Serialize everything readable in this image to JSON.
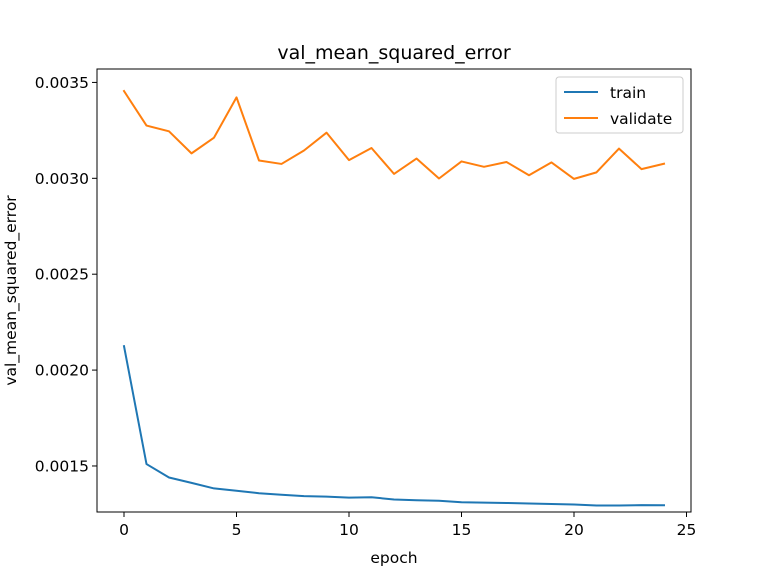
{
  "chart_data": {
    "type": "line",
    "title": "val_mean_squared_error",
    "xlabel": "epoch",
    "ylabel": "val_mean_squared_error",
    "xlim": [
      -1.2,
      25.2
    ],
    "ylim": [
      0.00126,
      0.00357
    ],
    "xticks": [
      0,
      5,
      10,
      15,
      20,
      25
    ],
    "xtick_labels": [
      "0",
      "5",
      "10",
      "15",
      "20",
      "25"
    ],
    "yticks": [
      0.0015,
      0.002,
      0.0025,
      0.003,
      0.0035
    ],
    "ytick_labels": [
      "0.0015",
      "0.0020",
      "0.0025",
      "0.0030",
      "0.0035"
    ],
    "grid": false,
    "legend_position": "top-right",
    "x": [
      0,
      1,
      2,
      3,
      4,
      5,
      6,
      7,
      8,
      9,
      10,
      11,
      12,
      13,
      14,
      15,
      16,
      17,
      18,
      19,
      20,
      21,
      22,
      23,
      24
    ],
    "series": [
      {
        "name": "train",
        "color": "#1f77b4",
        "values": [
          0.002125,
          0.00151,
          0.00144,
          0.001412,
          0.001383,
          0.001371,
          0.001358,
          0.00135,
          0.001343,
          0.00134,
          0.001335,
          0.001337,
          0.001325,
          0.001321,
          0.001319,
          0.001311,
          0.001309,
          0.001307,
          0.001304,
          0.001302,
          0.001299,
          0.001294,
          0.001294,
          0.001296,
          0.001295
        ]
      },
      {
        "name": "validate",
        "color": "#ff7f0e",
        "values": [
          0.003455,
          0.003275,
          0.003245,
          0.00313,
          0.003212,
          0.003422,
          0.003093,
          0.003075,
          0.003145,
          0.003238,
          0.003095,
          0.003158,
          0.003023,
          0.003103,
          0.002999,
          0.003088,
          0.00306,
          0.003085,
          0.003016,
          0.003083,
          0.002997,
          0.003031,
          0.003155,
          0.003048,
          0.003076
        ]
      }
    ]
  }
}
